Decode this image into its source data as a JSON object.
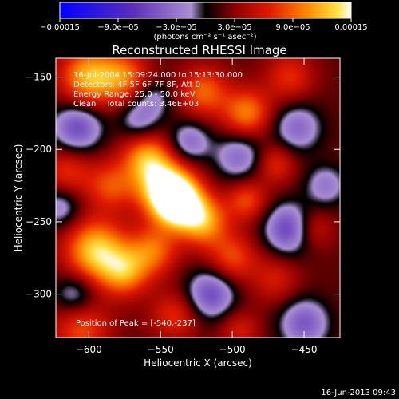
{
  "chart_data": {
    "type": "heatmap",
    "title": "Reconstructed RHESSI Image",
    "xlabel": "Heliocentric X (arcsec)",
    "ylabel": "Heliocentric Y (arcsec)",
    "xlim": [
      -623,
      -425
    ],
    "ylim": [
      -330,
      -137
    ],
    "x_ticks": [
      -600,
      -550,
      -500,
      -450
    ],
    "x_tick_labels": [
      "−600",
      "−550",
      "−500",
      "−450"
    ],
    "y_ticks": [
      -150,
      -200,
      -250,
      -300
    ],
    "y_tick_labels": [
      "−150",
      "−200",
      "−250",
      "−300"
    ],
    "colorbar": {
      "min": -0.00015,
      "max": 0.00015,
      "ticks": [
        -0.00015,
        -9e-05,
        -3e-05,
        3e-05,
        9e-05,
        0.00015
      ],
      "tick_labels": [
        "−0.00015",
        "−9.0e−05",
        "−3.0e−05",
        "3.0e−05",
        "9.0e−05",
        "0.00015"
      ],
      "unit_label": "(photons cm⁻² s⁻¹ asec⁻²)"
    },
    "annotations": [
      "16-Jul-2004 15:09:24.000 to 15:13:30.000",
      "Detectors: 4F 5F 6F 7F 8F, Att 0",
      "Energy Range: 25.0 - 50.0 keV",
      "Clean    Total counts: 3.46E+03"
    ],
    "peak_label": "Position of Peak = [-540,-237]",
    "peak": [
      -540,
      -237
    ],
    "blobs": [
      {
        "x": -538,
        "y": -237,
        "v": 0.00015,
        "r": 12
      },
      {
        "x": -548,
        "y": -225,
        "v": 0.00011,
        "r": 14
      },
      {
        "x": -600,
        "y": -150,
        "v": 0.0001,
        "r": 14
      },
      {
        "x": -575,
        "y": -150,
        "v": 7e-05,
        "r": 12
      },
      {
        "x": -595,
        "y": -270,
        "v": 0.00011,
        "r": 15
      },
      {
        "x": -575,
        "y": -285,
        "v": 8e-05,
        "r": 12
      },
      {
        "x": -560,
        "y": -205,
        "v": 8e-05,
        "r": 12
      },
      {
        "x": -585,
        "y": -225,
        "v": 6e-05,
        "r": 12
      },
      {
        "x": -520,
        "y": -250,
        "v": 9e-05,
        "r": 12
      },
      {
        "x": -500,
        "y": -275,
        "v": 6e-05,
        "r": 12
      },
      {
        "x": -555,
        "y": -270,
        "v": 7e-05,
        "r": 12
      },
      {
        "x": -520,
        "y": -160,
        "v": 7e-05,
        "r": 12
      },
      {
        "x": -490,
        "y": -175,
        "v": 8e-05,
        "r": 12
      },
      {
        "x": -490,
        "y": -235,
        "v": 6e-05,
        "r": 10
      },
      {
        "x": -460,
        "y": -150,
        "v": 5e-05,
        "r": 12
      },
      {
        "x": -470,
        "y": -210,
        "v": 5e-05,
        "r": 10
      },
      {
        "x": -445,
        "y": -255,
        "v": 5e-05,
        "r": 10
      },
      {
        "x": -615,
        "y": -215,
        "v": 5e-05,
        "r": 12
      },
      {
        "x": -605,
        "y": -325,
        "v": 6e-05,
        "r": 14
      },
      {
        "x": -540,
        "y": -315,
        "v": 5e-05,
        "r": 12
      },
      {
        "x": -470,
        "y": -290,
        "v": 4e-05,
        "r": 12
      },
      {
        "x": -495,
        "y": -325,
        "v": 4e-05,
        "r": 10
      },
      {
        "x": -608,
        "y": -185,
        "v": -8e-05,
        "r": 12
      },
      {
        "x": -530,
        "y": -195,
        "v": -6e-05,
        "r": 10
      },
      {
        "x": -565,
        "y": -180,
        "v": -5e-05,
        "r": 10
      },
      {
        "x": -460,
        "y": -255,
        "v": -9e-05,
        "r": 12
      },
      {
        "x": -455,
        "y": -185,
        "v": -6e-05,
        "r": 12
      },
      {
        "x": -495,
        "y": -205,
        "v": -6e-05,
        "r": 12
      },
      {
        "x": -515,
        "y": -300,
        "v": -8e-05,
        "r": 12
      },
      {
        "x": -450,
        "y": -320,
        "v": -7e-05,
        "r": 12
      },
      {
        "x": -620,
        "y": -240,
        "v": -5e-05,
        "r": 10
      },
      {
        "x": -610,
        "y": -300,
        "v": -5e-05,
        "r": 10
      },
      {
        "x": -435,
        "y": -225,
        "v": -5e-05,
        "r": 10
      },
      {
        "x": -555,
        "y": -165,
        "v": -4e-05,
        "r": 9
      }
    ]
  },
  "footer": {
    "date": "16-Jun-2013 09:43"
  }
}
